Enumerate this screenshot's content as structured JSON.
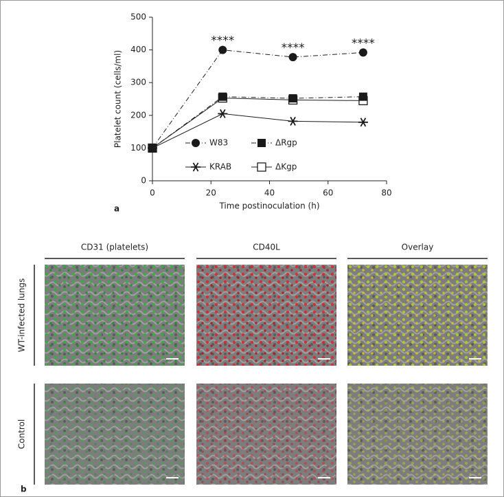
{
  "chart_data": {
    "type": "line",
    "panel_label": "a",
    "xlabel": "Time postinoculation (h)",
    "ylabel": "Platelet count (cells/ml)",
    "x": [
      0,
      24,
      48,
      72
    ],
    "xlim": [
      0,
      80
    ],
    "xticks": [
      0,
      20,
      40,
      60,
      80
    ],
    "ylim": [
      0,
      500
    ],
    "yticks": [
      0,
      100,
      200,
      300,
      400,
      500
    ],
    "series": [
      {
        "name": "W83",
        "color": "#1a1a1a",
        "marker": "circle",
        "dash": "dashdot",
        "values": [
          100,
          400,
          378,
          392
        ]
      },
      {
        "name": "ΔRgp",
        "color": "#1a1a1a",
        "marker": "square",
        "dash": "dashdot",
        "values": [
          100,
          257,
          252,
          257
        ]
      },
      {
        "name": "KRAB",
        "color": "#1a1a1a",
        "marker": "asterisk",
        "dash": "solid",
        "values": [
          100,
          205,
          182,
          179
        ]
      },
      {
        "name": "ΔKgp",
        "color": "#1a1a1a",
        "marker": "open-square",
        "dash": "solid",
        "values": [
          100,
          253,
          247,
          245
        ]
      }
    ],
    "annotations": [
      {
        "text": "****",
        "x": 24
      },
      {
        "text": "****",
        "x": 48
      },
      {
        "text": "****",
        "x": 72
      }
    ]
  },
  "panel_b": {
    "label": "b",
    "columns": [
      "CD31 (platelets)",
      "CD40L",
      "Overlay"
    ],
    "rows": [
      "WT-infected lungs",
      "Control"
    ]
  }
}
